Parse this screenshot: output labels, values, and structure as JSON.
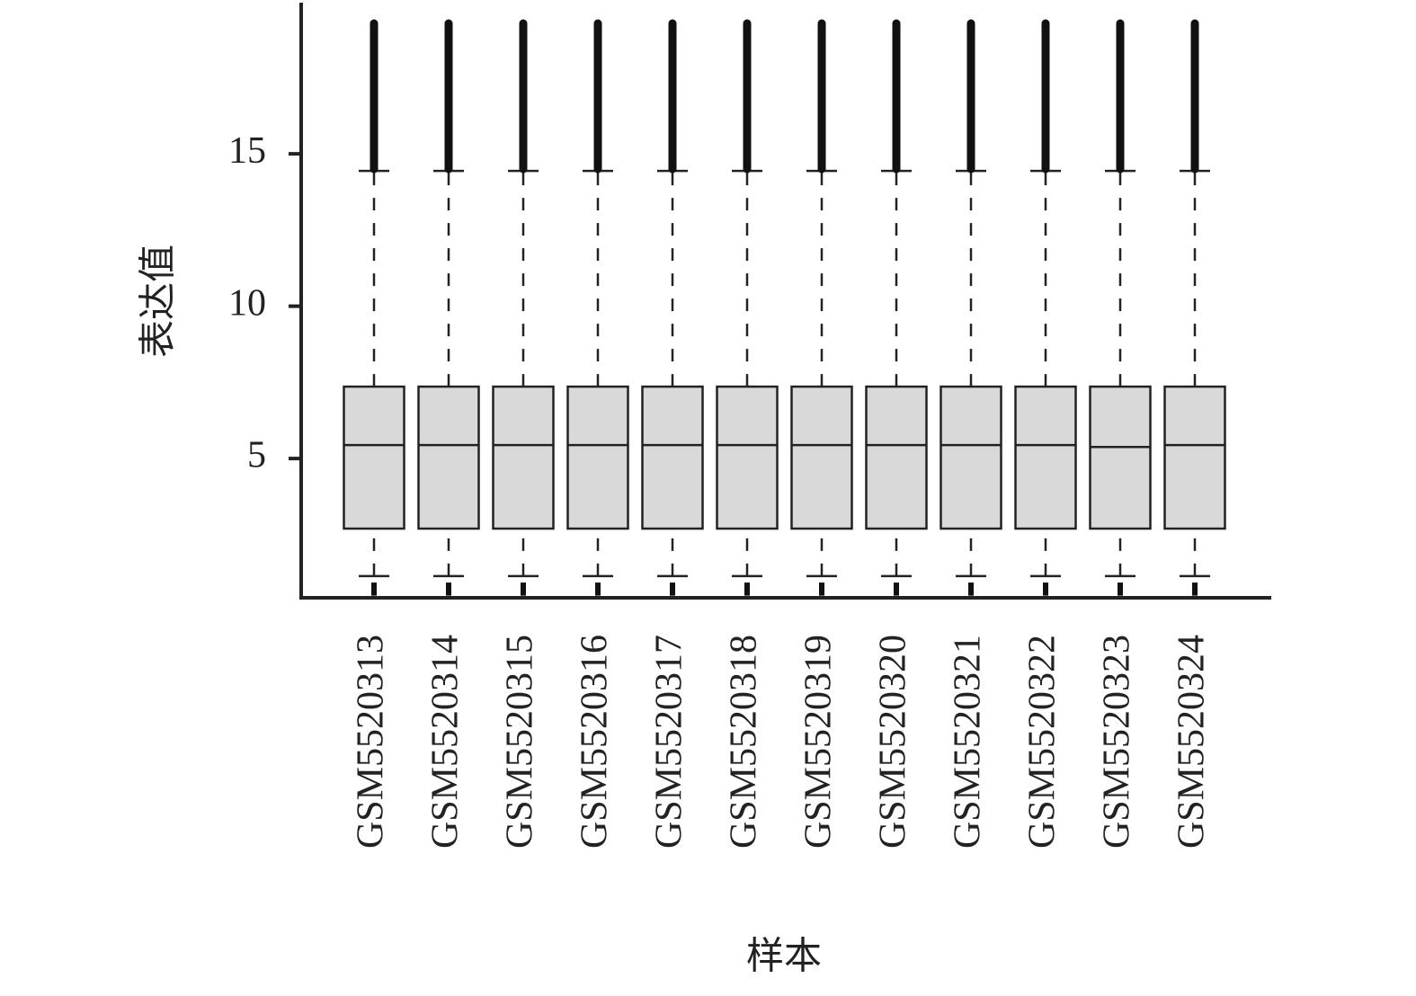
{
  "chart_data": {
    "type": "box",
    "y_label": "表达值",
    "x_label": "样本",
    "categories": [
      "GSM5520313",
      "GSM5520314",
      "GSM5520315",
      "GSM5520316",
      "GSM5520317",
      "GSM5520318",
      "GSM5520319",
      "GSM5520320",
      "GSM5520321",
      "GSM5520322",
      "GSM5520323",
      "GSM5520324"
    ],
    "whislo": [
      1.14,
      1.14,
      1.14,
      1.14,
      1.14,
      1.14,
      1.14,
      1.14,
      1.14,
      1.14,
      1.14,
      1.14
    ],
    "q1": [
      2.7,
      2.7,
      2.7,
      2.7,
      2.7,
      2.7,
      2.7,
      2.7,
      2.7,
      2.7,
      2.7,
      2.7
    ],
    "med": [
      5.44,
      5.44,
      5.44,
      5.44,
      5.44,
      5.44,
      5.44,
      5.44,
      5.44,
      5.44,
      5.38,
      5.44
    ],
    "q3": [
      7.36,
      7.36,
      7.36,
      7.36,
      7.36,
      7.36,
      7.36,
      7.36,
      7.36,
      7.36,
      7.36,
      7.36
    ],
    "whishi": [
      14.44,
      14.44,
      14.44,
      14.44,
      14.44,
      14.44,
      14.44,
      14.44,
      14.44,
      14.44,
      14.44,
      14.44
    ],
    "upper_outliers": [
      [
        14.5,
        19.28
      ],
      [
        14.5,
        19.28
      ],
      [
        14.5,
        19.28
      ],
      [
        14.5,
        19.28
      ],
      [
        14.5,
        19.28
      ],
      [
        14.5,
        19.28
      ],
      [
        14.5,
        19.28
      ],
      [
        14.5,
        19.28
      ],
      [
        14.5,
        19.28
      ],
      [
        14.5,
        19.28
      ],
      [
        14.5,
        19.28
      ],
      [
        14.5,
        19.28
      ]
    ],
    "lower_outliers": [
      [
        0.5,
        0.93
      ],
      [
        0.5,
        0.93
      ],
      [
        0.5,
        0.93
      ],
      [
        0.5,
        0.93
      ],
      [
        0.5,
        0.93
      ],
      [
        0.5,
        0.93
      ],
      [
        0.5,
        0.93
      ],
      [
        0.5,
        0.93
      ],
      [
        0.5,
        0.93
      ],
      [
        0.5,
        0.93
      ],
      [
        0.5,
        0.93
      ],
      [
        0.5,
        0.93
      ]
    ],
    "color": "#d9d9d9",
    "ylim": [
      0.43,
      19.96
    ],
    "yticks": [
      5,
      10,
      15
    ]
  }
}
